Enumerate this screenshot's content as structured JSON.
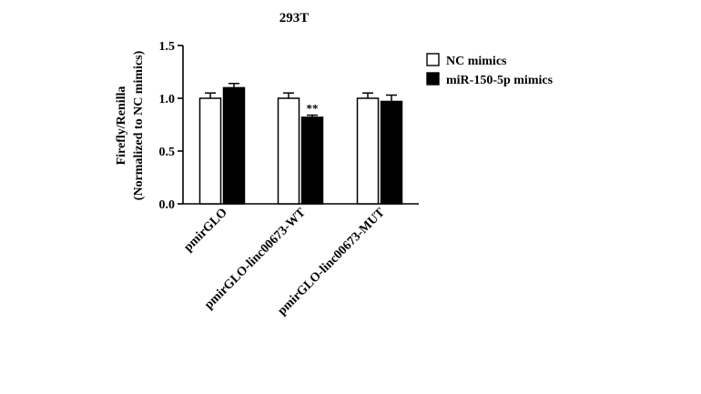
{
  "chart_data": {
    "type": "bar",
    "title": "293T",
    "ylabel_line1": "Firefly/Renilla",
    "ylabel_line2": "(Normalized to NC mimics)",
    "xlabel": "",
    "ylim": [
      0,
      1.5
    ],
    "yticks": [
      "0.0",
      "0.5",
      "1.0",
      "1.5"
    ],
    "ytick_values": [
      0,
      0.5,
      1.0,
      1.5
    ],
    "categories": [
      "pmirGLO",
      "pmirGLO-linc00673-WT",
      "pmirGLO-linc00673-MUT"
    ],
    "series": [
      {
        "name": "NC mimics",
        "values": [
          1.0,
          1.0,
          1.0
        ],
        "errors": [
          0.05,
          0.05,
          0.05
        ],
        "color": "#ffffff"
      },
      {
        "name": "miR-150-5p mimics",
        "values": [
          1.1,
          0.82,
          0.97
        ],
        "errors": [
          0.04,
          0.02,
          0.06
        ],
        "color": "#000000"
      }
    ],
    "annotations": [
      {
        "category_index": 1,
        "series_index": 1,
        "text": "**"
      }
    ],
    "legend_position": "top-right",
    "grid": false
  }
}
